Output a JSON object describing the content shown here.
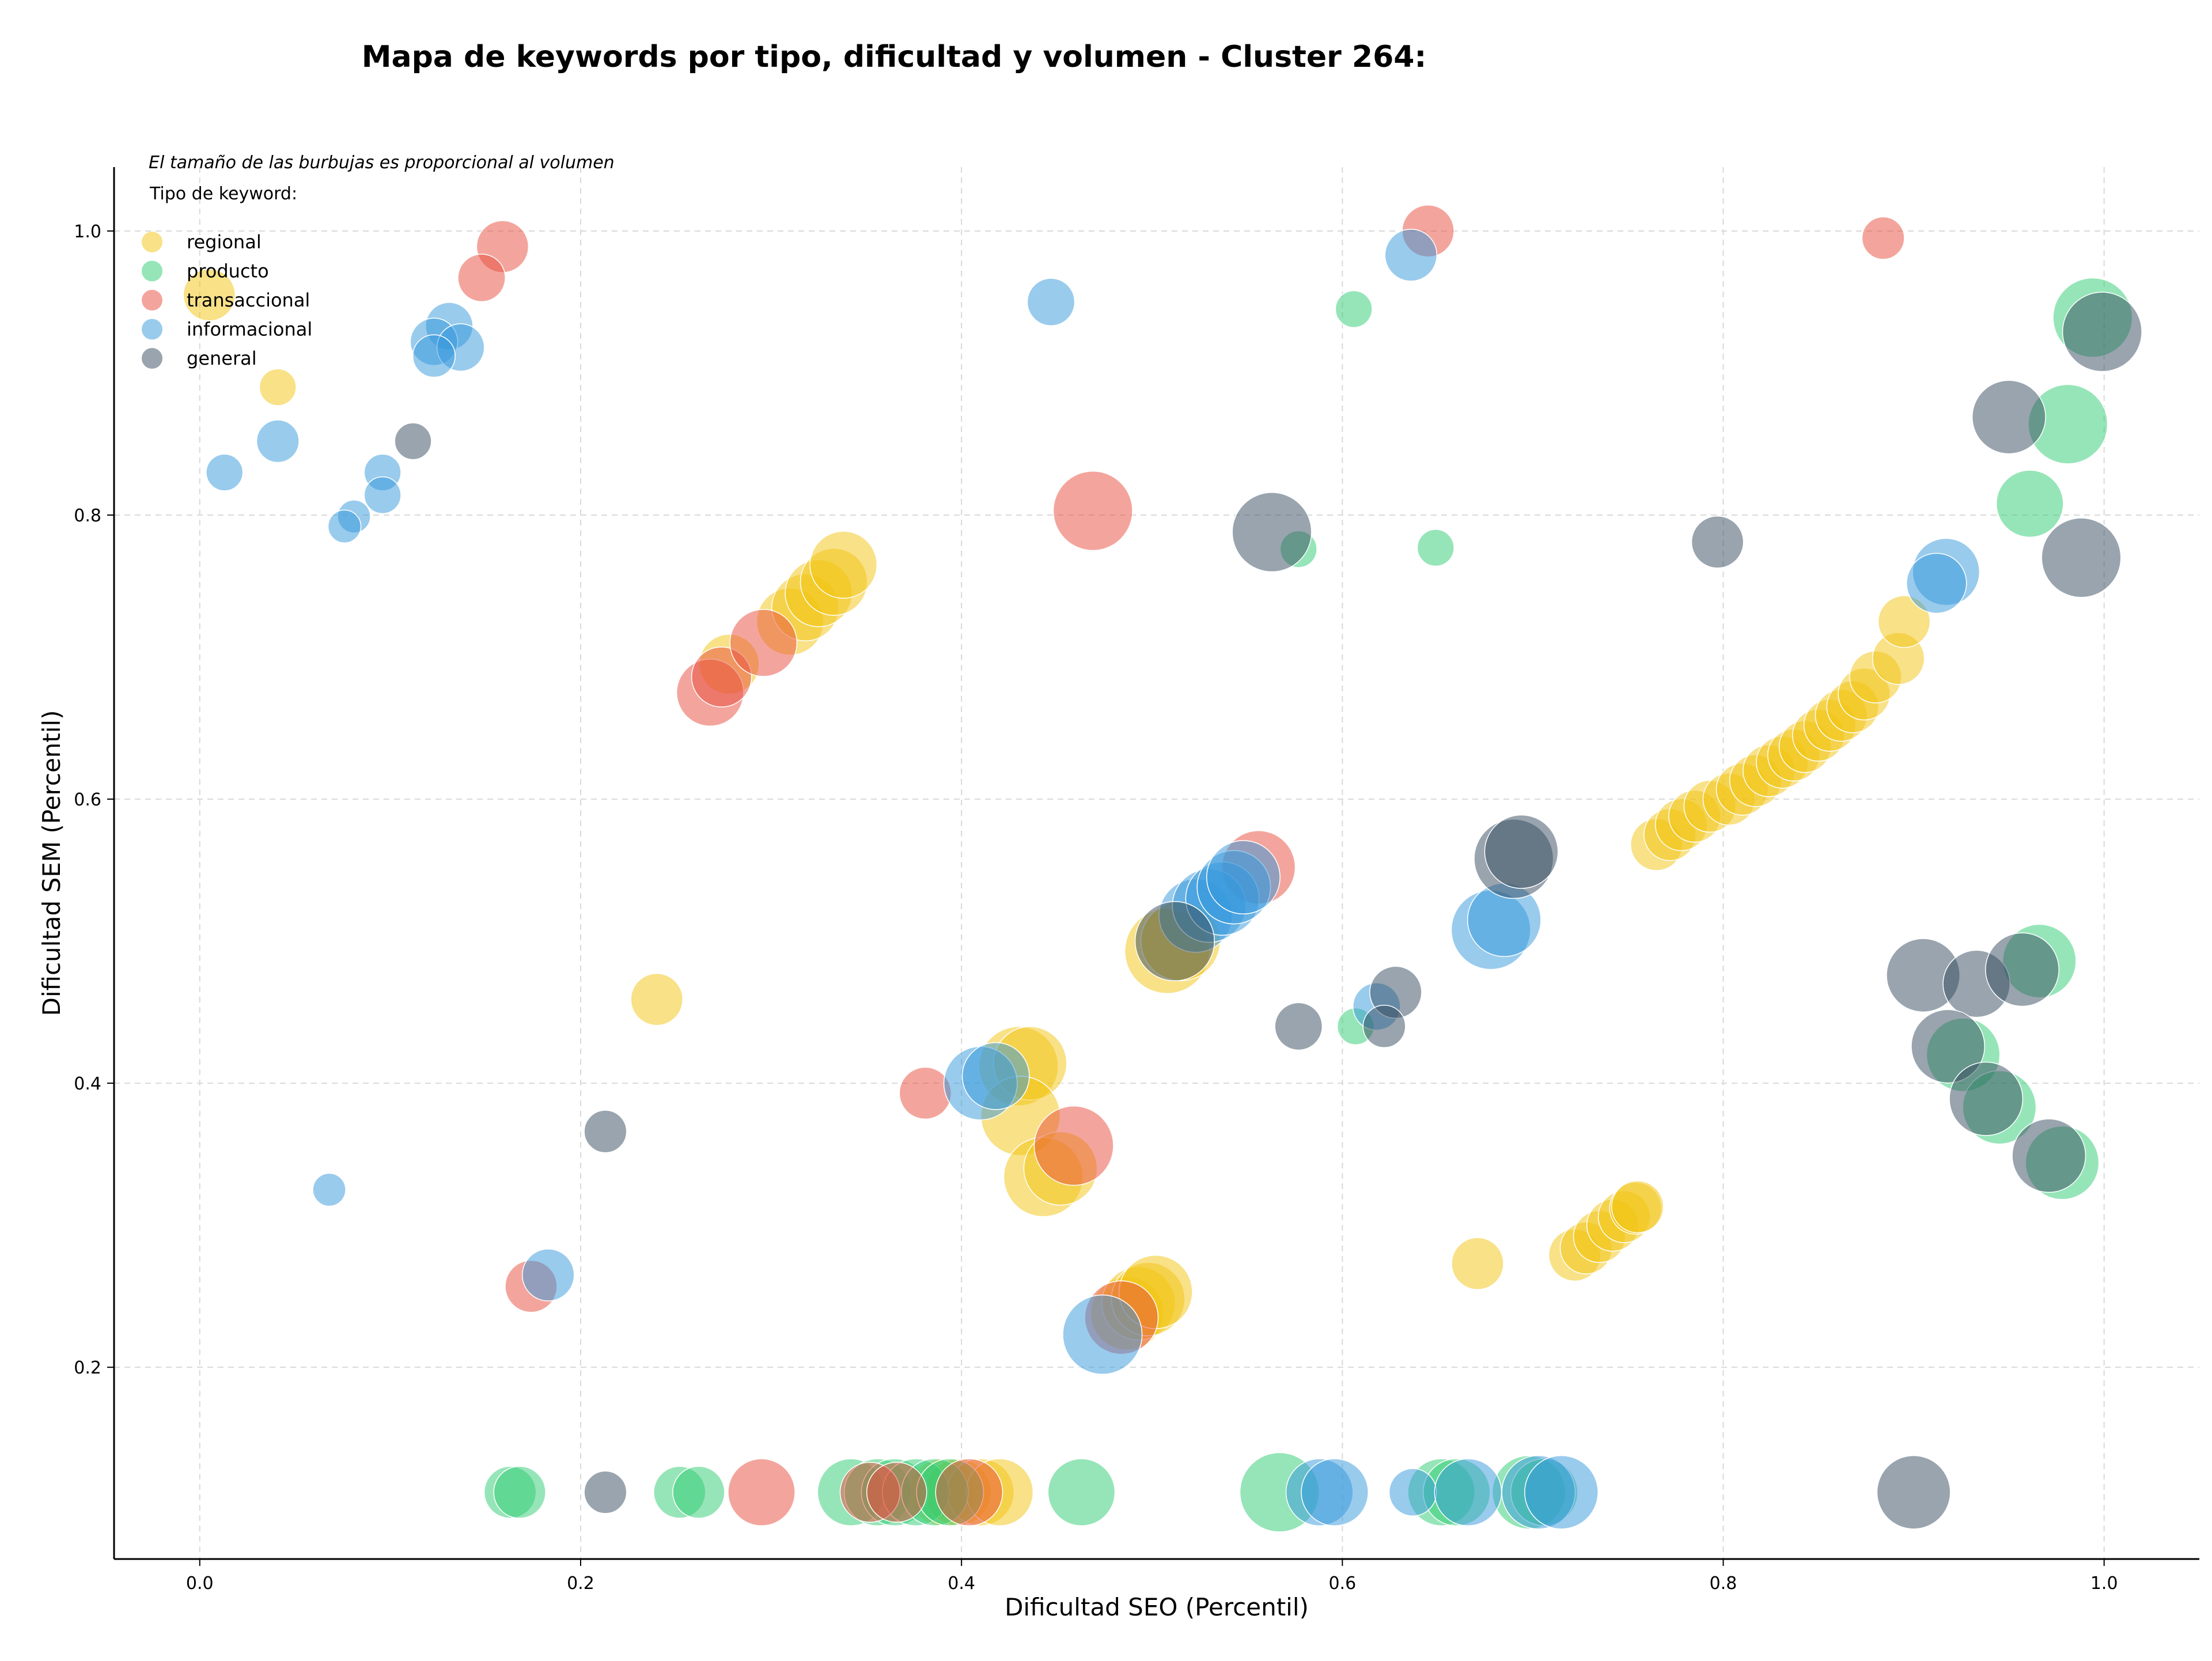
{
  "chart_data": {
    "type": "scatter",
    "title": "Mapa de keywords por tipo, dificultad y volumen - Cluster 264:",
    "subtitle": "El tamaño de las burbujas es proporcional al volumen",
    "xlabel": "Dificultad SEO (Percentil)",
    "ylabel": "Dificultad SEM (Percentil)",
    "xlim": [
      -0.045,
      1.05
    ],
    "ylim": [
      0.065,
      1.045
    ],
    "xticks": [
      "0.0",
      "0.2",
      "0.4",
      "0.6",
      "0.8",
      "1.0"
    ],
    "yticks": [
      "0.2",
      "0.4",
      "0.6",
      "0.8",
      "1.0"
    ],
    "grid": true,
    "legend": {
      "title": "Tipo de keyword:",
      "placement": "top-left"
    },
    "series": [
      {
        "name": "regional",
        "color": "#f1c40f",
        "points": [
          [
            0.005,
            0.955,
            3
          ],
          [
            0.041,
            0.89,
            1.5
          ],
          [
            0.24,
            0.459,
            3
          ],
          [
            0.278,
            0.695,
            4
          ],
          [
            0.31,
            0.725,
            5
          ],
          [
            0.318,
            0.735,
            5
          ],
          [
            0.325,
            0.745,
            5
          ],
          [
            0.333,
            0.753,
            5
          ],
          [
            0.338,
            0.765,
            5
          ],
          [
            0.43,
            0.412,
            7
          ],
          [
            0.436,
            0.414,
            6
          ],
          [
            0.431,
            0.377,
            7
          ],
          [
            0.443,
            0.334,
            7
          ],
          [
            0.452,
            0.34,
            6
          ],
          [
            0.487,
            0.238,
            6
          ],
          [
            0.493,
            0.245,
            6
          ],
          [
            0.498,
            0.248,
            6
          ],
          [
            0.502,
            0.253,
            6
          ],
          [
            0.508,
            0.493,
            8
          ],
          [
            0.515,
            0.5,
            7
          ],
          [
            0.39,
            0.112,
            5
          ],
          [
            0.398,
            0.112,
            5
          ],
          [
            0.41,
            0.112,
            5
          ],
          [
            0.42,
            0.112,
            5
          ],
          [
            0.671,
            0.273,
            3
          ],
          [
            0.722,
            0.279,
            3
          ],
          [
            0.728,
            0.284,
            3
          ],
          [
            0.735,
            0.292,
            3
          ],
          [
            0.742,
            0.3,
            3
          ],
          [
            0.748,
            0.306,
            3
          ],
          [
            0.754,
            0.312,
            3
          ],
          [
            0.755,
            0.313,
            3
          ],
          [
            0.765,
            0.568,
            3
          ],
          [
            0.772,
            0.575,
            3
          ],
          [
            0.778,
            0.582,
            3
          ],
          [
            0.785,
            0.588,
            3
          ],
          [
            0.793,
            0.595,
            3
          ],
          [
            0.803,
            0.6,
            3
          ],
          [
            0.81,
            0.607,
            3
          ],
          [
            0.817,
            0.613,
            3
          ],
          [
            0.824,
            0.62,
            3
          ],
          [
            0.831,
            0.626,
            3
          ],
          [
            0.837,
            0.631,
            3
          ],
          [
            0.843,
            0.637,
            3
          ],
          [
            0.85,
            0.645,
            3
          ],
          [
            0.856,
            0.652,
            3
          ],
          [
            0.862,
            0.659,
            3
          ],
          [
            0.868,
            0.665,
            3
          ],
          [
            0.874,
            0.674,
            3
          ],
          [
            0.88,
            0.686,
            3
          ],
          [
            0.892,
            0.699,
            3
          ],
          [
            0.895,
            0.725,
            3
          ]
        ]
      },
      {
        "name": "producto",
        "color": "#2ecc71",
        "points": [
          [
            0.649,
            0.777,
            1.5
          ],
          [
            0.606,
            0.945,
            1.5
          ],
          [
            0.577,
            0.776,
            1.5
          ],
          [
            0.607,
            0.44,
            1.5
          ],
          [
            0.994,
            0.939,
            7
          ],
          [
            0.981,
            0.864,
            7
          ],
          [
            0.961,
            0.808,
            5
          ],
          [
            0.966,
            0.486,
            6
          ],
          [
            0.926,
            0.42,
            6
          ],
          [
            0.945,
            0.383,
            6
          ],
          [
            0.978,
            0.344,
            6
          ],
          [
            0.163,
            0.112,
            3
          ],
          [
            0.168,
            0.112,
            3
          ],
          [
            0.252,
            0.112,
            3
          ],
          [
            0.262,
            0.112,
            3
          ],
          [
            0.342,
            0.112,
            5
          ],
          [
            0.356,
            0.112,
            5
          ],
          [
            0.365,
            0.112,
            5
          ],
          [
            0.376,
            0.112,
            5
          ],
          [
            0.386,
            0.112,
            5
          ],
          [
            0.394,
            0.112,
            5
          ],
          [
            0.463,
            0.112,
            5
          ],
          [
            0.567,
            0.112,
            7
          ],
          [
            0.652,
            0.112,
            5
          ],
          [
            0.66,
            0.112,
            5
          ],
          [
            0.698,
            0.112,
            6
          ],
          [
            0.706,
            0.112,
            5
          ]
        ]
      },
      {
        "name": "transaccional",
        "color": "#e74c3c",
        "points": [
          [
            0.159,
            0.989,
            3
          ],
          [
            0.148,
            0.967,
            2.5
          ],
          [
            0.645,
            1.0,
            3
          ],
          [
            0.884,
            0.995,
            2
          ],
          [
            0.469,
            0.803,
            7
          ],
          [
            0.268,
            0.675,
            5
          ],
          [
            0.274,
            0.686,
            4
          ],
          [
            0.296,
            0.71,
            5
          ],
          [
            0.556,
            0.552,
            6
          ],
          [
            0.381,
            0.393,
            3
          ],
          [
            0.459,
            0.356,
            7
          ],
          [
            0.174,
            0.257,
            3
          ],
          [
            0.484,
            0.235,
            6
          ],
          [
            0.295,
            0.112,
            5
          ],
          [
            0.352,
            0.112,
            4
          ],
          [
            0.366,
            0.112,
            4
          ],
          [
            0.404,
            0.112,
            5
          ]
        ]
      },
      {
        "name": "informacional",
        "color": "#3498db",
        "points": [
          [
            0.447,
            0.95,
            2.5
          ],
          [
            0.636,
            0.983,
            3
          ],
          [
            0.131,
            0.933,
            2.5
          ],
          [
            0.123,
            0.922,
            2.5
          ],
          [
            0.137,
            0.918,
            2.5
          ],
          [
            0.123,
            0.912,
            2
          ],
          [
            0.041,
            0.852,
            2
          ],
          [
            0.013,
            0.83,
            1.5
          ],
          [
            0.096,
            0.83,
            1.5
          ],
          [
            0.096,
            0.814,
            1.5
          ],
          [
            0.081,
            0.799,
            1.2
          ],
          [
            0.076,
            0.792,
            1.2
          ],
          [
            0.068,
            0.325,
            1.2
          ],
          [
            0.183,
            0.265,
            3
          ],
          [
            0.917,
            0.76,
            5
          ],
          [
            0.912,
            0.752,
            4
          ],
          [
            0.523,
            0.518,
            6
          ],
          [
            0.53,
            0.525,
            6
          ],
          [
            0.537,
            0.53,
            6
          ],
          [
            0.543,
            0.538,
            6
          ],
          [
            0.548,
            0.545,
            6
          ],
          [
            0.41,
            0.4,
            6
          ],
          [
            0.418,
            0.405,
            5
          ],
          [
            0.474,
            0.223,
            7
          ],
          [
            0.678,
            0.508,
            7
          ],
          [
            0.685,
            0.515,
            6
          ],
          [
            0.618,
            0.454,
            2.5
          ],
          [
            0.588,
            0.112,
            5
          ],
          [
            0.596,
            0.112,
            5
          ],
          [
            0.637,
            0.112,
            2.5
          ],
          [
            0.666,
            0.112,
            5
          ],
          [
            0.703,
            0.112,
            6
          ],
          [
            0.715,
            0.112,
            6
          ]
        ]
      },
      {
        "name": "general",
        "color": "#34495e",
        "points": [
          [
            0.112,
            0.852,
            1.5
          ],
          [
            0.213,
            0.366,
            2
          ],
          [
            0.213,
            0.112,
            2
          ],
          [
            0.563,
            0.788,
            7
          ],
          [
            0.512,
            0.5,
            7
          ],
          [
            0.577,
            0.44,
            2.5
          ],
          [
            0.628,
            0.464,
            3
          ],
          [
            0.622,
            0.44,
            2
          ],
          [
            0.69,
            0.558,
            7
          ],
          [
            0.694,
            0.563,
            6
          ],
          [
            0.797,
            0.781,
            3
          ],
          [
            0.95,
            0.869,
            6
          ],
          [
            0.999,
            0.929,
            7
          ],
          [
            0.988,
            0.77,
            7
          ],
          [
            0.905,
            0.476,
            6
          ],
          [
            0.933,
            0.47,
            5
          ],
          [
            0.957,
            0.48,
            6
          ],
          [
            0.918,
            0.426,
            6
          ],
          [
            0.938,
            0.389,
            6
          ],
          [
            0.971,
            0.349,
            6
          ],
          [
            0.9,
            0.112,
            6
          ]
        ]
      }
    ]
  }
}
